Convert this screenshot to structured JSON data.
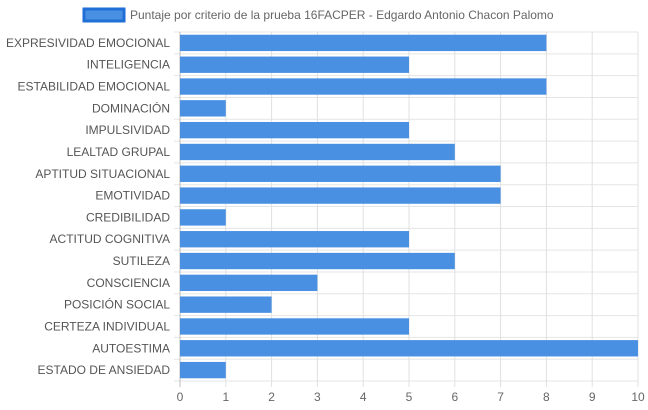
{
  "chart_data": {
    "type": "bar",
    "orientation": "horizontal",
    "legend_position": "top",
    "grid": true,
    "xlim": [
      0,
      10
    ],
    "x_ticks": [
      "0",
      "1",
      "2",
      "3",
      "4",
      "5",
      "6",
      "7",
      "8",
      "9",
      "10"
    ],
    "categories": [
      "EXPRESIVIDAD EMOCIONAL",
      "INTELIGENCIA",
      "ESTABILIDAD EMOCIONAL",
      "DOMINACIÓN",
      "IMPULSIVIDAD",
      "LEALTAD GRUPAL",
      "APTITUD SITUACIONAL",
      "EMOTIVIDAD",
      "CREDIBILIDAD",
      "ACTITUD COGNITIVA",
      "SUTILEZA",
      "CONSCIENCIA",
      "POSICIÓN SOCIAL",
      "CERTEZA INDIVIDUAL",
      "AUTOESTIMA",
      "ESTADO DE ANSIEDAD"
    ],
    "series": [
      {
        "name": "Puntaje por criterio de la prueba 16FACPER - Edgardo Antonio Chacon Palomo",
        "values": [
          8,
          5,
          8,
          1,
          5,
          6,
          7,
          7,
          1,
          5,
          6,
          3,
          2,
          5,
          10,
          1
        ],
        "color": "#4a90e2",
        "border_color": "#1f6fd6"
      }
    ]
  }
}
